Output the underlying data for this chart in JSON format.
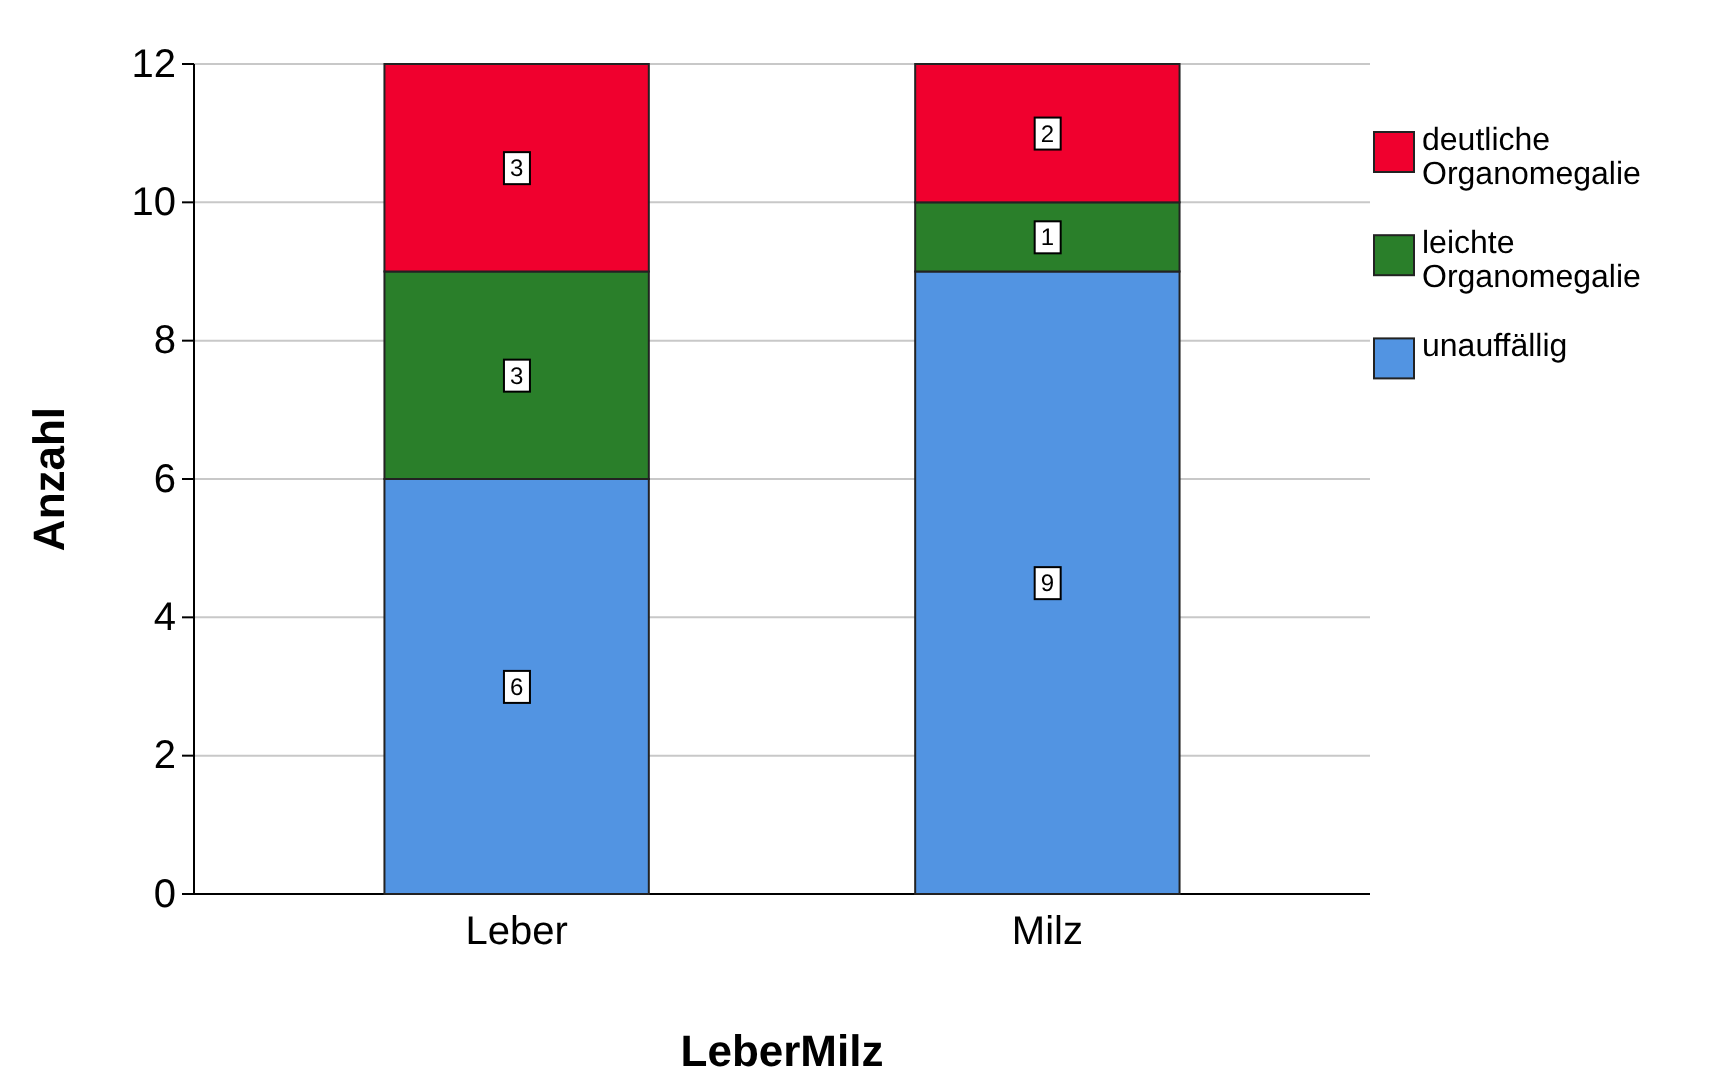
{
  "chart_data": {
    "type": "bar",
    "stacked": true,
    "xlabel": "LeberMilz",
    "ylabel": "Anzahl",
    "categories": [
      "Leber",
      "Milz"
    ],
    "series": [
      {
        "name": "unauffällig",
        "color": "#5294e2",
        "values": [
          6,
          9
        ]
      },
      {
        "name": "leichte Organomegalie",
        "color": "#2a7f2a",
        "values": [
          3,
          1
        ]
      },
      {
        "name": "deutliche Organomegalie",
        "color": "#f0002e",
        "values": [
          3,
          2
        ]
      }
    ],
    "ylim": [
      0,
      12
    ],
    "yticks": [
      0,
      2,
      4,
      6,
      8,
      10,
      12
    ],
    "grid": "y",
    "legend": "right",
    "data_labels": true
  }
}
